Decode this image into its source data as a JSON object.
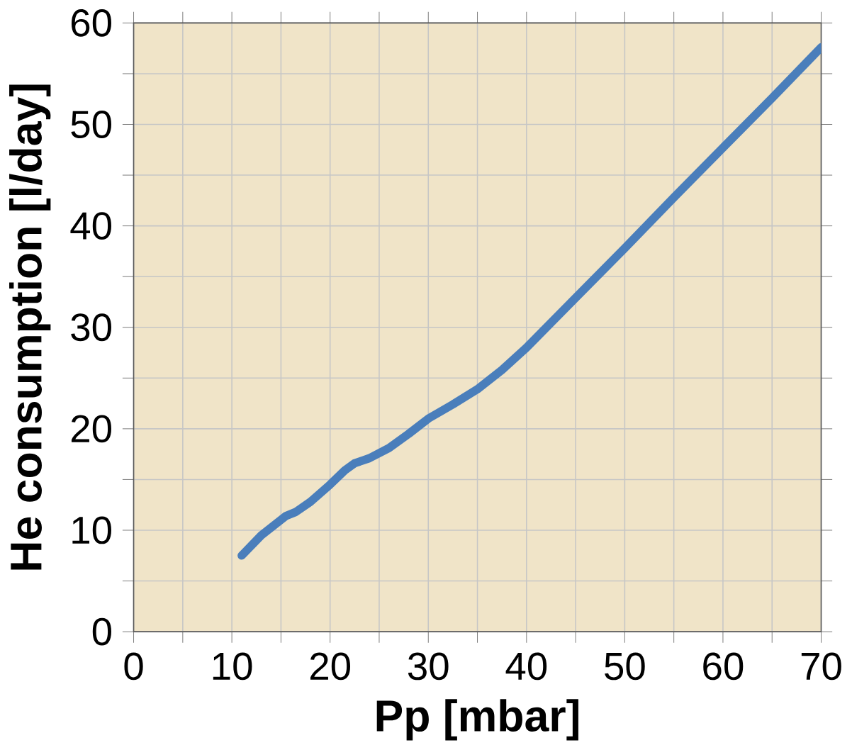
{
  "chart_data": {
    "type": "line",
    "xlabel": "Pp [mbar]",
    "ylabel": "He consumption [l/day]",
    "series": [
      {
        "color": "#4a7ebb",
        "x": [
          11,
          13,
          15.5,
          16.5,
          18,
          20,
          21.5,
          22.5,
          24,
          26,
          28,
          30,
          32.5,
          35,
          37.5,
          40,
          45,
          50,
          55,
          60,
          65,
          70
        ],
        "values": [
          7.5,
          9.5,
          11.4,
          11.8,
          12.8,
          14.5,
          15.9,
          16.6,
          17.1,
          18.1,
          19.5,
          21,
          22.4,
          23.9,
          25.8,
          28,
          32.9,
          37.8,
          42.8,
          47.7,
          52.6,
          57.6
        ]
      }
    ],
    "xlim": [
      0,
      70
    ],
    "ylim": [
      0,
      60
    ],
    "xticks": [
      0,
      {
        "value": 5,
        "label": null
      },
      10,
      {
        "value": 15,
        "label": null
      },
      20,
      {
        "value": 25,
        "label": null
      },
      30,
      {
        "value": 35,
        "label": null
      },
      40,
      {
        "value": 45,
        "label": null
      },
      50,
      {
        "value": 55,
        "label": null
      },
      60,
      {
        "value": 65,
        "label": null
      },
      70
    ],
    "yticks": [
      0,
      {
        "value": 5,
        "label": null
      },
      10,
      {
        "value": 15,
        "label": null
      },
      20,
      {
        "value": 25,
        "label": null
      },
      30,
      {
        "value": 35,
        "label": null
      },
      40,
      {
        "value": 45,
        "label": null
      },
      50,
      {
        "value": 55,
        "label": null
      },
      60
    ],
    "grid": true,
    "marker": "none",
    "line_style": "solid"
  }
}
